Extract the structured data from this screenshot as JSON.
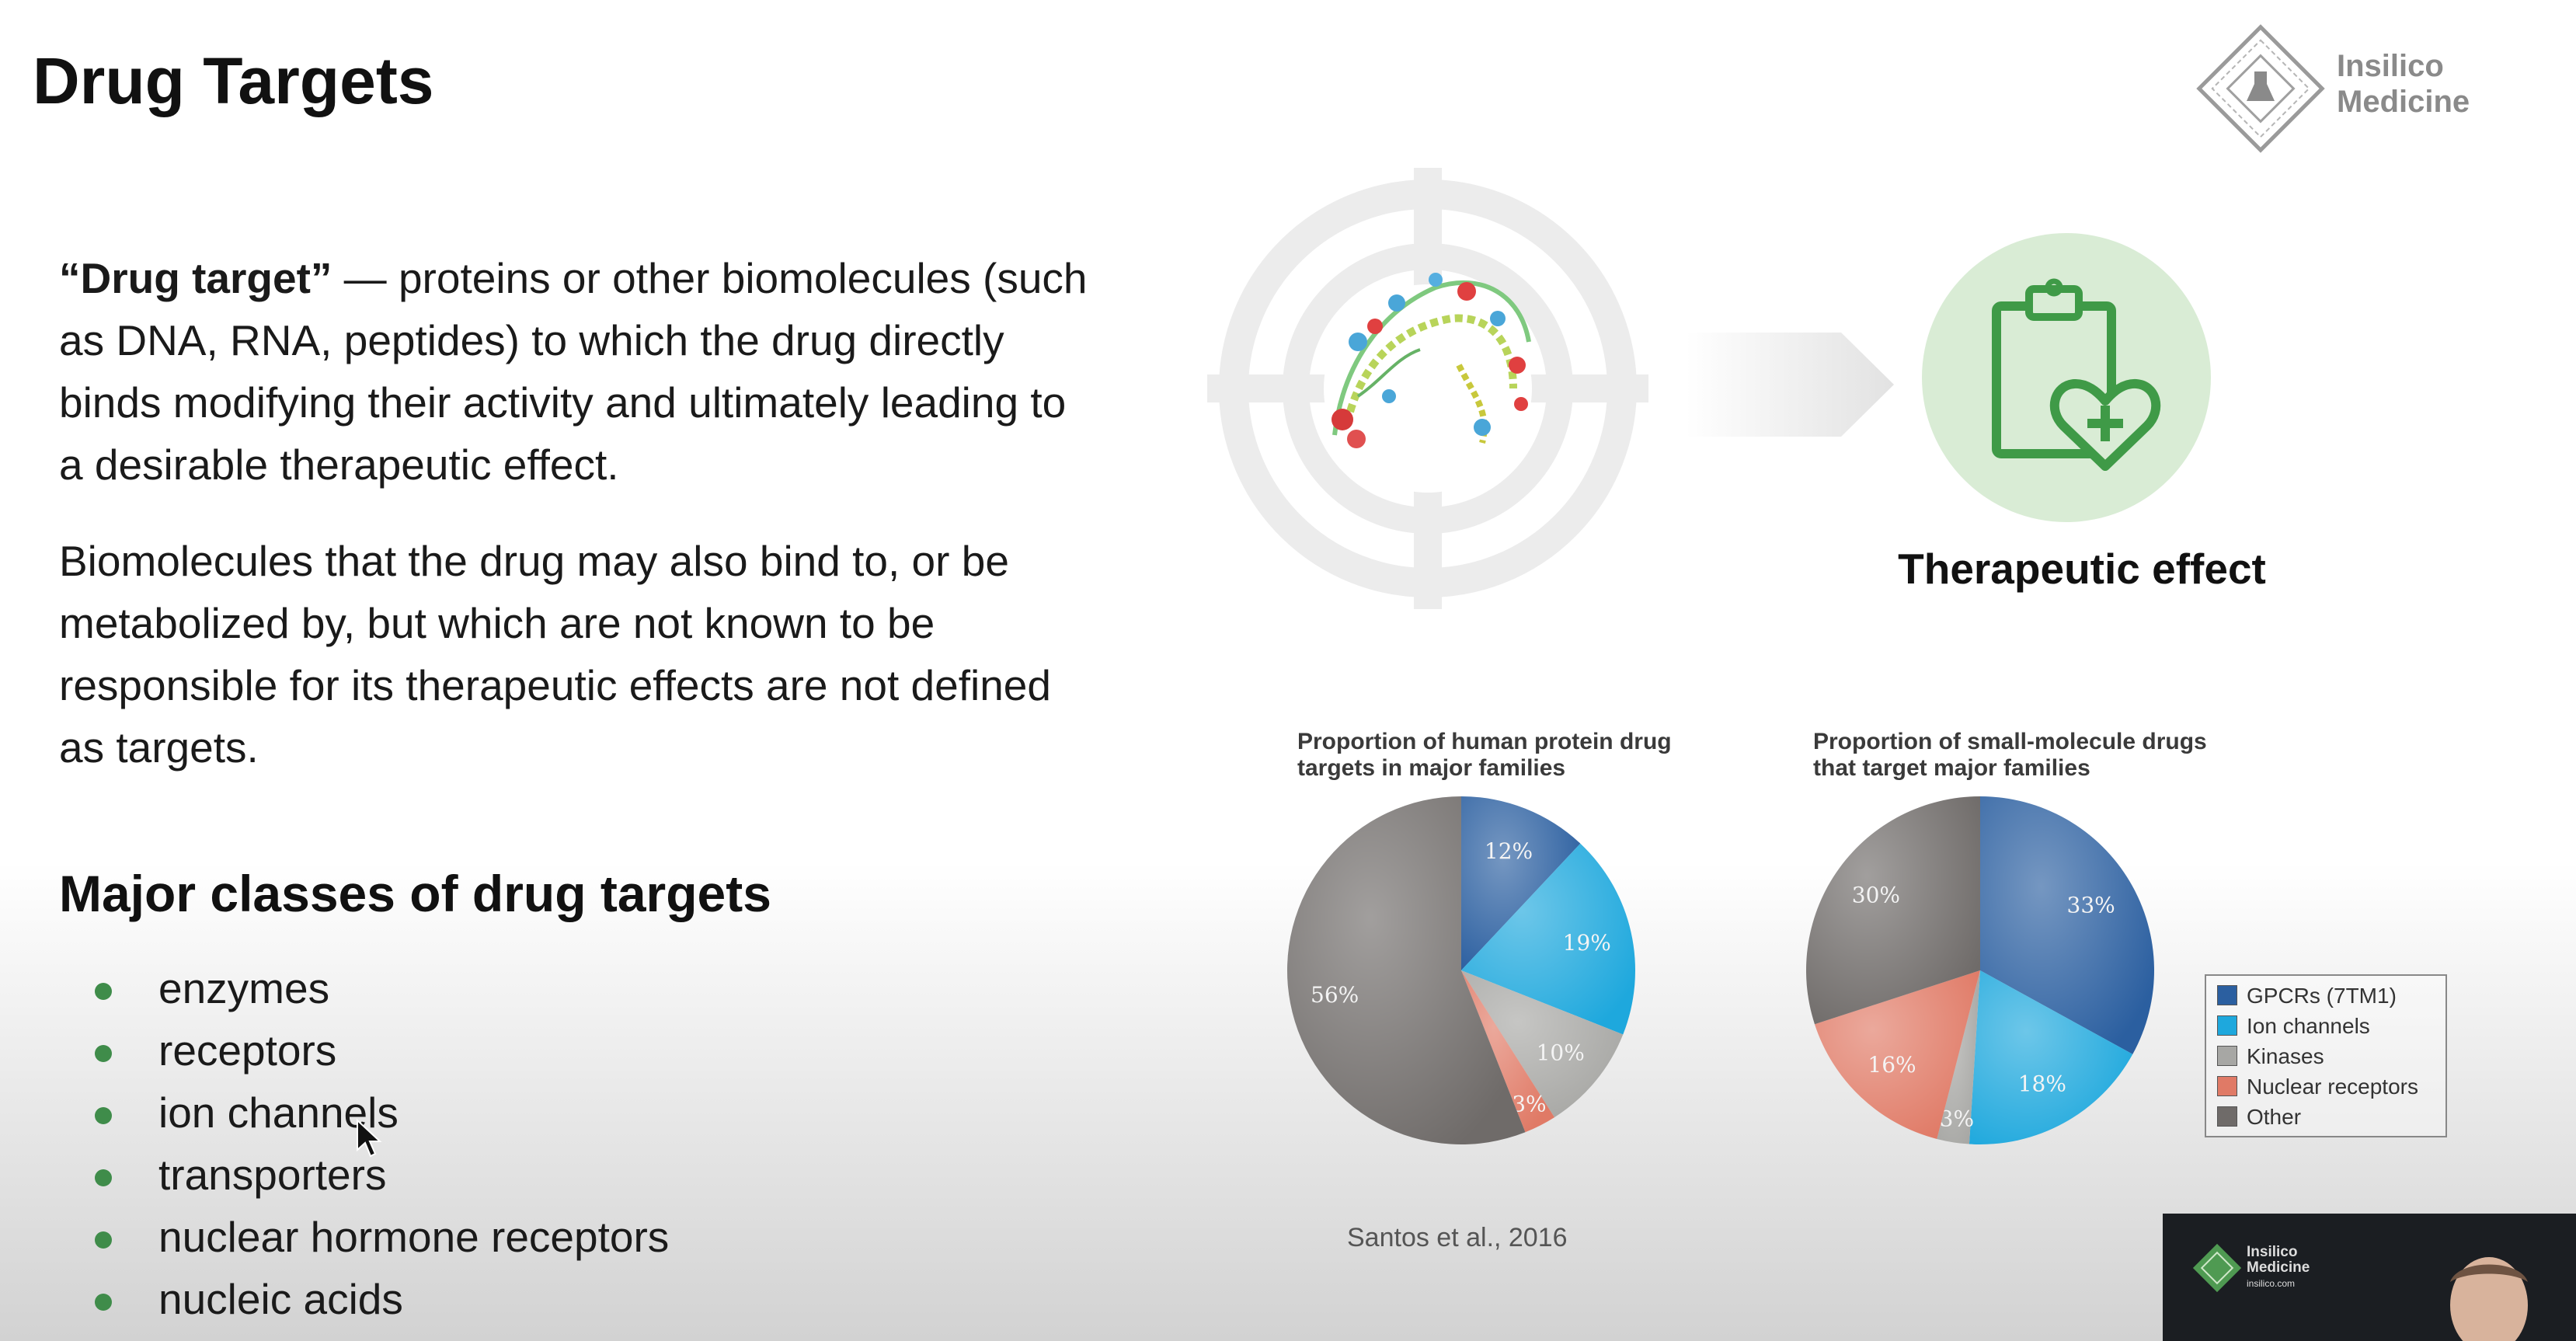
{
  "slide": {
    "title": "Drug Targets",
    "definition_term": "“Drug target”",
    "definition_rest": " —  proteins or other biomolecules (such as DNA, RNA, peptides) to which the drug directly binds modifying their activity and ultimately leading to a desirable therapeutic effect.",
    "non_target_paragraph": "Biomolecules that the drug may also bind to, or be metabolized by, but which are not known to be responsible for its therapeutic effects are not defined as targets.",
    "classes_heading": "Major classes of drug targets",
    "classes": [
      "enzymes",
      "receptors",
      "ion channels",
      "transporters",
      "nuclear hormone receptors",
      "nucleic acids"
    ],
    "therapeutic_label": "Therapeutic effect",
    "citation": "Santos et al., 2016",
    "logo_line1": "Insilico",
    "logo_line2": "Medicine",
    "thumb_logo_line1": "Insilico",
    "thumb_logo_line2": "Medicine",
    "thumb_logo_line3": "insilico.com"
  },
  "icons": {
    "logo": "insilico-diamond-logo-icon",
    "target": "crosshair-target-icon",
    "arrow": "right-arrow-icon",
    "effect": "clipboard-heart-icon",
    "bullet": "bullet-dot-icon",
    "cursor": "mouse-pointer-icon"
  },
  "colors": {
    "accent_green": "#3f8c4a",
    "effect_circle": "#d9ecd5",
    "gpcr": "#2b5fa0",
    "ion_channels": "#1ea8dd",
    "kinases": "#a7a7a4",
    "nuclear_receptors": "#e07a66",
    "other": "#6f6b69"
  },
  "chart_data": [
    {
      "type": "pie",
      "title": "Proportion of human protein drug targets in major families",
      "categories": [
        "GPCRs (7TM1)",
        "Ion channels",
        "Kinases",
        "Nuclear receptors",
        "Other"
      ],
      "values": [
        12,
        19,
        10,
        3,
        56
      ],
      "labels": [
        "12%",
        "19%",
        "10%",
        "3%",
        "56%"
      ]
    },
    {
      "type": "pie",
      "title": "Proportion of small-molecule drugs that target major families",
      "categories": [
        "GPCRs (7TM1)",
        "Ion channels",
        "Kinases",
        "Nuclear receptors",
        "Other"
      ],
      "values": [
        33,
        18,
        3,
        16,
        30
      ],
      "labels": [
        "33%",
        "18%",
        "3%",
        "16%",
        "30%"
      ],
      "legend": [
        "GPCRs (7TM1)",
        "Ion channels",
        "Kinases",
        "Nuclear receptors",
        "Other"
      ]
    }
  ]
}
